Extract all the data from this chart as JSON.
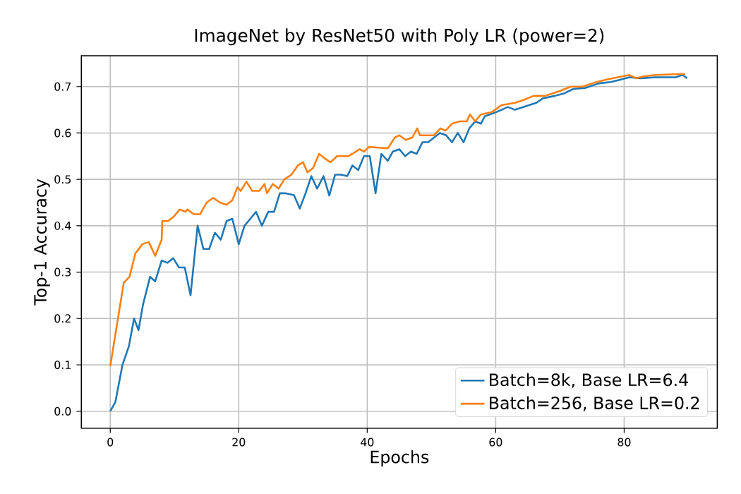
{
  "chart_data": {
    "type": "line",
    "title": "ImageNet by ResNet50 with Poly LR (power=2)",
    "xlabel": "Epochs",
    "ylabel": "Top-1 Accuracy",
    "xlim": [
      -4.5,
      94.5
    ],
    "ylim": [
      -0.0365,
      0.7665
    ],
    "xticks": [
      0,
      20,
      40,
      60,
      80
    ],
    "yticks": [
      {
        "value": 0,
        "label": "0.0"
      },
      0.1,
      0.2,
      0.3,
      0.4,
      0.5,
      0.6,
      0.7
    ],
    "grid": true,
    "legend": "bottom right",
    "line_style": "solid",
    "marker": "none",
    "series": [
      {
        "name": "Batch=8k, Base LR=6.4",
        "color": "#1f77b4",
        "x": [
          0,
          0.8,
          1.9,
          2.9,
          3.7,
          4.4,
          5.1,
          6.2,
          7.0,
          8.0,
          8.9,
          9.8,
          10.7,
          11.6,
          12.5,
          13.6,
          14.5,
          15.4,
          16.3,
          17.2,
          18.1,
          19.0,
          20.0,
          20.9,
          21.8,
          22.7,
          23.6,
          24.6,
          25.5,
          26.4,
          27.2,
          28.6,
          29.5,
          30.4,
          31.3,
          32.2,
          33.2,
          34.1,
          35.0,
          35.9,
          36.9,
          37.7,
          38.6,
          39.5,
          40.4,
          41.3,
          42.2,
          43.2,
          44.0,
          45.0,
          45.9,
          46.8,
          47.7,
          48.6,
          49.5,
          50.4,
          51.3,
          52.3,
          53.2,
          54.1,
          55.0,
          55.9,
          56.8,
          57.7,
          58.3,
          60.1,
          61.9,
          63.0,
          65.2,
          66.3,
          67.4,
          69.2,
          70.6,
          72.1,
          73.9,
          76.1,
          77.9,
          79.7,
          80.8,
          82.6,
          84.8,
          88.0,
          89.1,
          89.8
        ],
        "values": [
          0,
          0.02,
          0.1,
          0.14,
          0.2,
          0.175,
          0.23,
          0.29,
          0.28,
          0.325,
          0.32,
          0.33,
          0.31,
          0.31,
          0.25,
          0.4,
          0.35,
          0.35,
          0.385,
          0.37,
          0.41,
          0.415,
          0.36,
          0.4,
          0.415,
          0.43,
          0.4,
          0.43,
          0.43,
          0.47,
          0.47,
          0.466,
          0.437,
          0.47,
          0.507,
          0.48,
          0.507,
          0.465,
          0.51,
          0.51,
          0.507,
          0.53,
          0.52,
          0.55,
          0.55,
          0.47,
          0.555,
          0.54,
          0.56,
          0.565,
          0.55,
          0.56,
          0.555,
          0.58,
          0.58,
          0.59,
          0.6,
          0.595,
          0.58,
          0.6,
          0.58,
          0.61,
          0.625,
          0.62,
          0.636,
          0.645,
          0.656,
          0.65,
          0.66,
          0.665,
          0.675,
          0.68,
          0.685,
          0.695,
          0.697,
          0.707,
          0.71,
          0.716,
          0.72,
          0.718,
          0.72,
          0.72,
          0.725,
          0.718
        ]
      },
      {
        "name": "Batch=256, Base LR=0.2",
        "color": "#ff7f0e",
        "x": [
          0,
          0.5,
          1.2,
          2.1,
          3.0,
          3.9,
          5.0,
          6.0,
          7.0,
          8.0,
          8.1,
          9.0,
          9.9,
          10.8,
          11.7,
          12.0,
          13.0,
          14.0,
          15.0,
          16.0,
          17.1,
          18.1,
          19.0,
          19.8,
          20.3,
          21.2,
          22.1,
          23.2,
          24.0,
          24.4,
          25.3,
          26.2,
          27.1,
          28.2,
          29.2,
          30.0,
          30.7,
          31.6,
          32.5,
          33.4,
          34.3,
          35.3,
          37.0,
          37.7,
          38.8,
          39.5,
          40.3,
          42.1,
          43.2,
          44.3,
          45.0,
          46.0,
          47.0,
          47.8,
          48.2,
          50.4,
          51.4,
          52.2,
          53.2,
          54.4,
          55.5,
          56.0,
          56.8,
          57.7,
          59.4,
          60.9,
          63.0,
          64.1,
          65.9,
          67.7,
          69.9,
          71.7,
          73.5,
          75.7,
          77.5,
          79.0,
          80.8,
          81.9,
          83.0,
          84.8,
          88.4,
          89.5
        ],
        "values": [
          0.097,
          0.14,
          0.2,
          0.277,
          0.29,
          0.34,
          0.36,
          0.365,
          0.335,
          0.37,
          0.41,
          0.41,
          0.42,
          0.435,
          0.43,
          0.435,
          0.425,
          0.425,
          0.45,
          0.46,
          0.45,
          0.445,
          0.455,
          0.483,
          0.475,
          0.495,
          0.475,
          0.475,
          0.49,
          0.47,
          0.49,
          0.48,
          0.5,
          0.51,
          0.53,
          0.537,
          0.515,
          0.525,
          0.555,
          0.545,
          0.537,
          0.55,
          0.55,
          0.555,
          0.565,
          0.56,
          0.57,
          0.568,
          0.567,
          0.59,
          0.595,
          0.585,
          0.59,
          0.61,
          0.595,
          0.595,
          0.61,
          0.605,
          0.62,
          0.625,
          0.625,
          0.64,
          0.625,
          0.64,
          0.645,
          0.66,
          0.665,
          0.67,
          0.68,
          0.68,
          0.69,
          0.7,
          0.7,
          0.71,
          0.716,
          0.72,
          0.725,
          0.718,
          0.722,
          0.725,
          0.727,
          0.727
        ]
      }
    ]
  }
}
